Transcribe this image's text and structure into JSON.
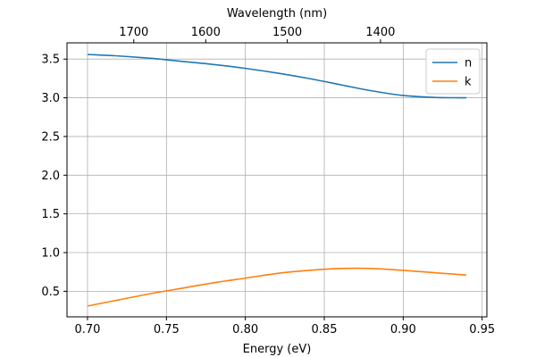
{
  "chart_data": {
    "type": "line",
    "title": "",
    "xlabel": "Energy (eV)",
    "ylabel": "",
    "top_xlabel": "Wavelength (nm)",
    "xlim": [
      0.687,
      0.953
    ],
    "ylim": [
      0.17,
      3.71
    ],
    "grid": true,
    "legend_position": "top-right",
    "x_ticks": [
      0.7,
      0.75,
      0.8,
      0.85,
      0.9,
      0.95
    ],
    "x_tick_labels": [
      "0.70",
      "0.75",
      "0.80",
      "0.85",
      "0.90",
      "0.95"
    ],
    "y_ticks": [
      0.5,
      1.0,
      1.5,
      2.0,
      2.5,
      3.0,
      3.5
    ],
    "y_tick_labels": [
      "0.5",
      "1.0",
      "1.5",
      "2.0",
      "2.5",
      "3.0",
      "3.5"
    ],
    "top_x_ticks": [
      1700,
      1600,
      1500,
      1400
    ],
    "top_x_tick_labels": [
      "1700",
      "1600",
      "1500",
      "1400"
    ],
    "series": [
      {
        "name": "n",
        "color": "#1f77b4",
        "x": [
          0.7,
          0.72,
          0.74,
          0.76,
          0.78,
          0.8,
          0.82,
          0.84,
          0.86,
          0.88,
          0.9,
          0.92,
          0.94
        ],
        "y": [
          3.56,
          3.54,
          3.51,
          3.47,
          3.43,
          3.38,
          3.32,
          3.25,
          3.17,
          3.09,
          3.03,
          3.005,
          3.0
        ]
      },
      {
        "name": "k",
        "color": "#ff7f0e",
        "x": [
          0.7,
          0.72,
          0.74,
          0.76,
          0.78,
          0.8,
          0.82,
          0.84,
          0.86,
          0.88,
          0.9,
          0.92,
          0.94
        ],
        "y": [
          0.31,
          0.39,
          0.47,
          0.54,
          0.61,
          0.67,
          0.73,
          0.77,
          0.795,
          0.795,
          0.77,
          0.74,
          0.71
        ]
      }
    ]
  }
}
